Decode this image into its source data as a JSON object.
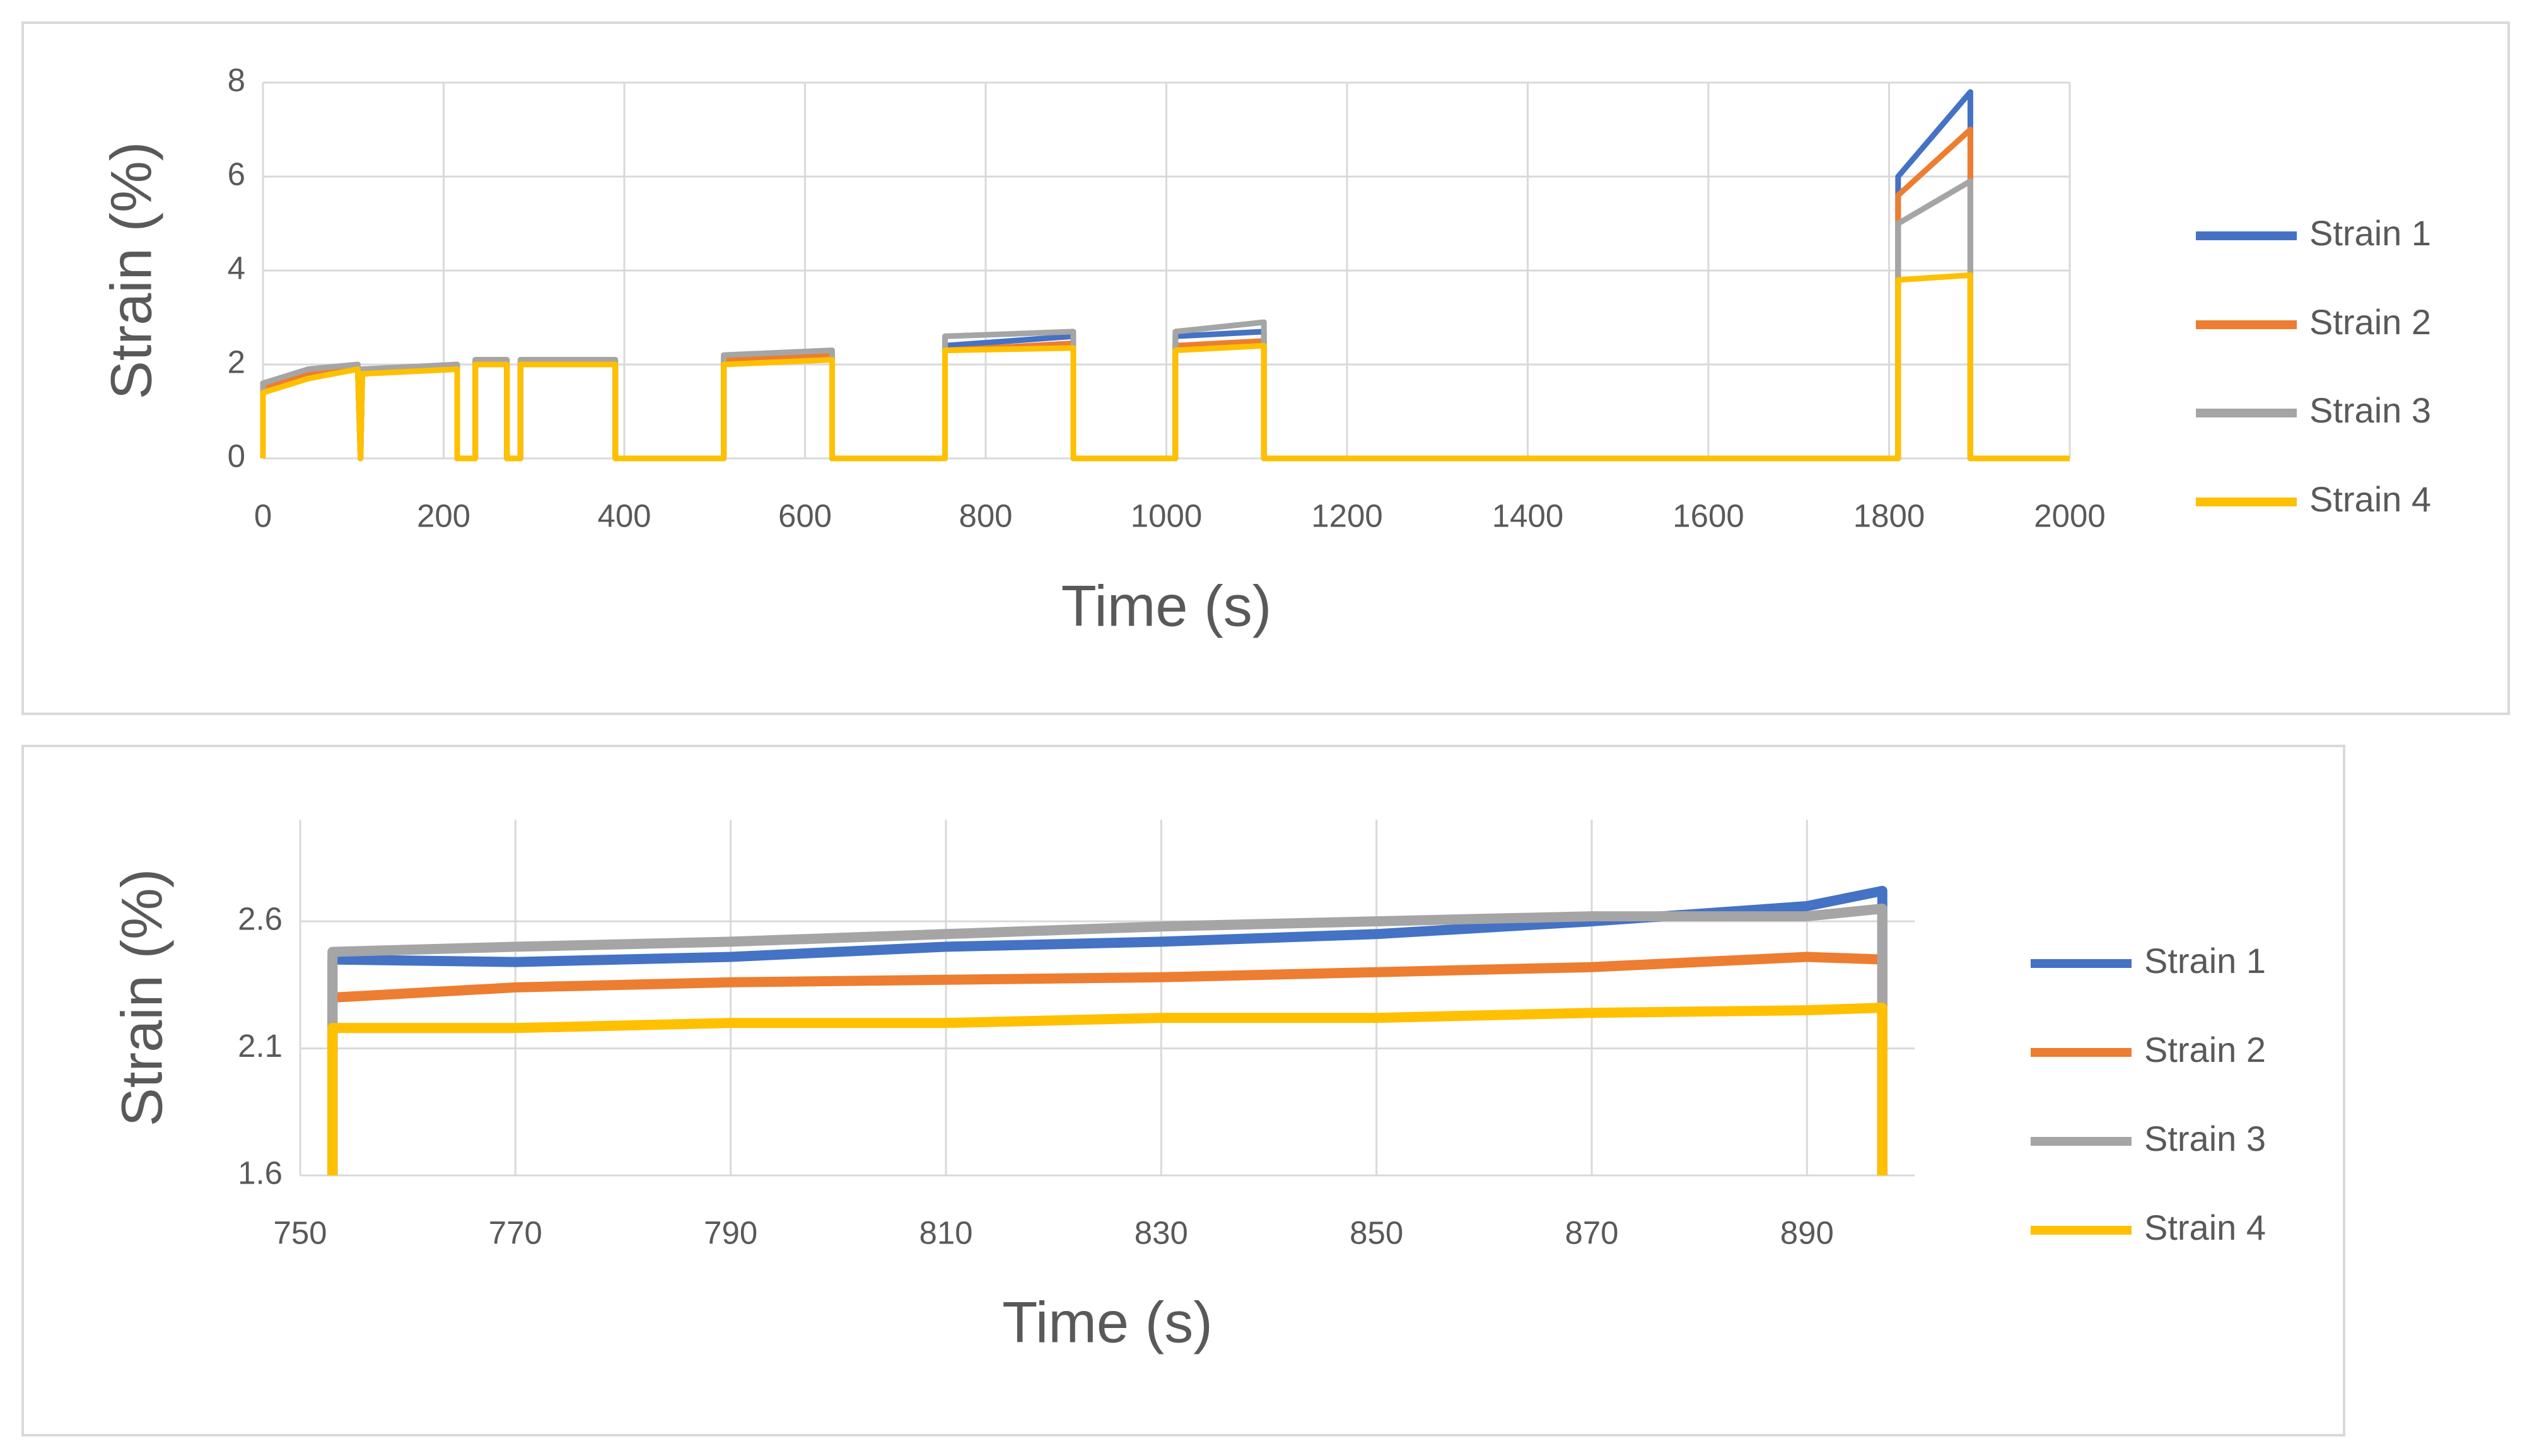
{
  "chart_data": [
    {
      "type": "line",
      "x_label": "Time (s)",
      "y_label": "Strain (%)",
      "xlim": [
        0,
        2000
      ],
      "xticks": [
        0,
        200,
        400,
        600,
        800,
        1000,
        1200,
        1400,
        1600,
        1800,
        2000
      ],
      "ylim": [
        0,
        8
      ],
      "yticks": [
        0,
        2,
        4,
        6,
        8
      ],
      "grid": true,
      "legend": "right",
      "x": [
        0,
        0,
        50,
        105,
        108,
        110,
        215,
        215,
        235,
        235,
        270,
        270,
        285,
        285,
        390,
        390,
        510,
        510,
        630,
        630,
        755,
        755,
        897,
        897,
        1010,
        1010,
        1108,
        1108,
        1810,
        1810,
        1890,
        1890,
        2000
      ],
      "series": [
        {
          "name": "Strain 1",
          "color": "#4472c4",
          "values": [
            0,
            1.5,
            1.8,
            1.9,
            0,
            1.9,
            1.9,
            0,
            0,
            2.0,
            2.0,
            0,
            0,
            2.0,
            2.0,
            0,
            0,
            2.1,
            2.2,
            0,
            0,
            2.4,
            2.6,
            0,
            0,
            2.6,
            2.7,
            0,
            0,
            6.0,
            7.8,
            0,
            0
          ]
        },
        {
          "name": "Strain 2",
          "color": "#ed7d31",
          "values": [
            0,
            1.5,
            1.8,
            1.9,
            0,
            1.9,
            1.9,
            0,
            0,
            2.0,
            2.0,
            0,
            0,
            2.0,
            2.0,
            0,
            0,
            2.1,
            2.2,
            0,
            0,
            2.3,
            2.45,
            0,
            0,
            2.4,
            2.5,
            0,
            0,
            5.6,
            7.0,
            0,
            0
          ]
        },
        {
          "name": "Strain 3",
          "color": "#a5a5a5",
          "values": [
            0,
            1.6,
            1.9,
            2.0,
            0,
            1.9,
            2.0,
            0,
            0,
            2.1,
            2.1,
            0,
            0,
            2.1,
            2.1,
            0,
            0,
            2.2,
            2.3,
            0,
            0,
            2.6,
            2.7,
            0,
            0,
            2.7,
            2.9,
            0,
            0,
            5.0,
            5.9,
            0,
            0
          ]
        },
        {
          "name": "Strain 4",
          "color": "#ffc000",
          "values": [
            0,
            1.4,
            1.7,
            1.9,
            0,
            1.8,
            1.9,
            0,
            0,
            2.0,
            2.0,
            0,
            0,
            2.0,
            2.0,
            0,
            0,
            2.0,
            2.1,
            0,
            0,
            2.3,
            2.35,
            0,
            0,
            2.3,
            2.4,
            0,
            0,
            3.8,
            3.9,
            0,
            0
          ]
        }
      ]
    },
    {
      "type": "line",
      "x_label": "Time (s)",
      "y_label": "Strain (%)",
      "xlim": [
        750,
        900
      ],
      "xticks": [
        750,
        770,
        790,
        810,
        830,
        850,
        870,
        890
      ],
      "ylim": [
        1.6,
        3.0
      ],
      "yticks": [
        1.6,
        2.1,
        2.6
      ],
      "grid": true,
      "legend": "right",
      "x": [
        753,
        753,
        770,
        790,
        810,
        830,
        850,
        870,
        890,
        897,
        897
      ],
      "series": [
        {
          "name": "Strain 1",
          "color": "#4472c4",
          "values": [
            1.6,
            2.45,
            2.44,
            2.46,
            2.5,
            2.52,
            2.55,
            2.6,
            2.66,
            2.72,
            1.6
          ]
        },
        {
          "name": "Strain 2",
          "color": "#ed7d31",
          "values": [
            1.6,
            2.3,
            2.34,
            2.36,
            2.37,
            2.38,
            2.4,
            2.42,
            2.46,
            2.45,
            1.6
          ]
        },
        {
          "name": "Strain 3",
          "color": "#a5a5a5",
          "values": [
            1.6,
            2.48,
            2.5,
            2.52,
            2.55,
            2.58,
            2.6,
            2.62,
            2.62,
            2.65,
            1.6
          ]
        },
        {
          "name": "Strain 4",
          "color": "#ffc000",
          "values": [
            1.6,
            2.18,
            2.18,
            2.2,
            2.2,
            2.22,
            2.22,
            2.24,
            2.25,
            2.26,
            1.6
          ]
        }
      ]
    }
  ]
}
